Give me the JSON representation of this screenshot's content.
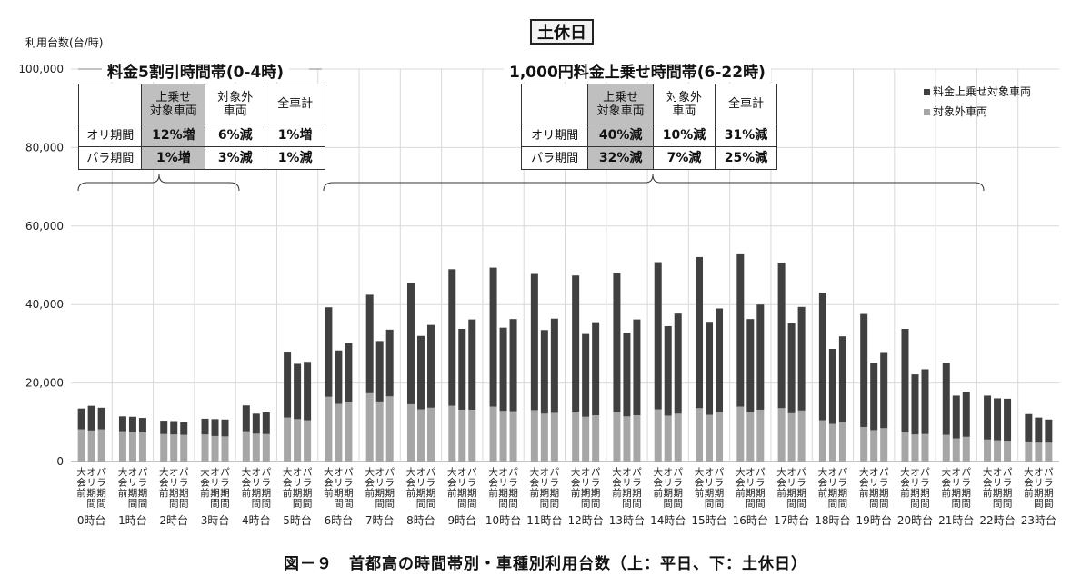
{
  "badge": "土休日",
  "y_axis_label": "利用台数(台/時)",
  "caption": "図－９　首都高の時間帯別・車種別利用台数（上：平日、下：土休日）",
  "sections": [
    {
      "title": "料金5割引時間帯(0-4時)",
      "header": [
        "",
        "上乗せ\n対象車両",
        "対象外\n車両",
        "全車計"
      ],
      "rows": [
        {
          "label": "オリ期間",
          "cells": [
            "12%増",
            "6%減",
            "1%増"
          ]
        },
        {
          "label": "パラ期間",
          "cells": [
            "1%増",
            "3%減",
            "1%減"
          ]
        }
      ]
    },
    {
      "title": "1,000円料金上乗せ時間帯(6-22時)",
      "header": [
        "",
        "上乗せ\n対象車両",
        "対象外\n車両",
        "全車計"
      ],
      "rows": [
        {
          "label": "オリ期間",
          "cells": [
            "40%減",
            "10%減",
            "31%減"
          ]
        },
        {
          "label": "パラ期間",
          "cells": [
            "32%減",
            "7%減",
            "25%減"
          ]
        }
      ]
    }
  ],
  "legend": [
    {
      "label": "料金上乗せ対象車両",
      "color": "#404040"
    },
    {
      "label": "対象外車両",
      "color": "#a6a6a6"
    }
  ],
  "colors": {
    "dark": "#404040",
    "light": "#a6a6a6",
    "grid": "#d9d9d9"
  },
  "chart_data": {
    "type": "bar",
    "stacked": true,
    "ylim": [
      0,
      100000
    ],
    "yticks": [
      "0",
      "20,000",
      "40,000",
      "60,000",
      "80,000",
      "100,000"
    ],
    "period_labels": [
      "大会前",
      "オリ期間",
      "パラ期間"
    ],
    "categories": [
      "0時台",
      "1時台",
      "2時台",
      "3時台",
      "4時台",
      "5時台",
      "6時台",
      "7時台",
      "8時台",
      "9時台",
      "10時台",
      "11時台",
      "12時台",
      "13時台",
      "14時台",
      "15時台",
      "16時台",
      "17時台",
      "18時台",
      "19時台",
      "20時台",
      "21時台",
      "22時台",
      "23時台"
    ],
    "series": [
      {
        "name": "対象外車両",
        "values": [
          [
            8200,
            7900,
            8200
          ],
          [
            7700,
            7500,
            7400
          ],
          [
            7000,
            6900,
            6800
          ],
          [
            6900,
            6500,
            6400
          ],
          [
            7700,
            7100,
            7000
          ],
          [
            11200,
            10800,
            10500
          ],
          [
            16500,
            14700,
            15200
          ],
          [
            17400,
            15300,
            16600
          ],
          [
            14600,
            13300,
            13700
          ],
          [
            14200,
            13200,
            13200
          ],
          [
            14000,
            12900,
            12800
          ],
          [
            13100,
            12200,
            12400
          ],
          [
            12700,
            11400,
            11800
          ],
          [
            12600,
            11500,
            11800
          ],
          [
            13300,
            11700,
            12200
          ],
          [
            13600,
            11900,
            12600
          ],
          [
            14000,
            12600,
            13200
          ],
          [
            13600,
            12300,
            13000
          ],
          [
            10500,
            9600,
            10100
          ],
          [
            8800,
            8000,
            8500
          ],
          [
            7600,
            6900,
            7000
          ],
          [
            6800,
            5900,
            6300
          ],
          [
            5600,
            5400,
            5300
          ],
          [
            5100,
            4800,
            4800
          ]
        ]
      },
      {
        "name": "料金上乗せ対象車両",
        "values": [
          [
            5300,
            6300,
            5500
          ],
          [
            3800,
            3900,
            3700
          ],
          [
            3400,
            3400,
            3300
          ],
          [
            4000,
            4300,
            4300
          ],
          [
            6600,
            5100,
            5500
          ],
          [
            16800,
            14100,
            14900
          ],
          [
            22800,
            13600,
            15000
          ],
          [
            25100,
            15400,
            17000
          ],
          [
            31000,
            18700,
            21100
          ],
          [
            34800,
            20600,
            23000
          ],
          [
            35400,
            21200,
            23500
          ],
          [
            34700,
            21300,
            24000
          ],
          [
            34700,
            21100,
            23700
          ],
          [
            35400,
            21300,
            24400
          ],
          [
            37500,
            22800,
            25500
          ],
          [
            38500,
            23700,
            26400
          ],
          [
            38800,
            23700,
            26800
          ],
          [
            37100,
            22900,
            26400
          ],
          [
            32500,
            19100,
            21800
          ],
          [
            28800,
            17100,
            19400
          ],
          [
            26200,
            15300,
            16500
          ],
          [
            18400,
            10900,
            11500
          ],
          [
            11200,
            10700,
            10700
          ],
          [
            7000,
            6400,
            5900
          ]
        ]
      }
    ]
  }
}
